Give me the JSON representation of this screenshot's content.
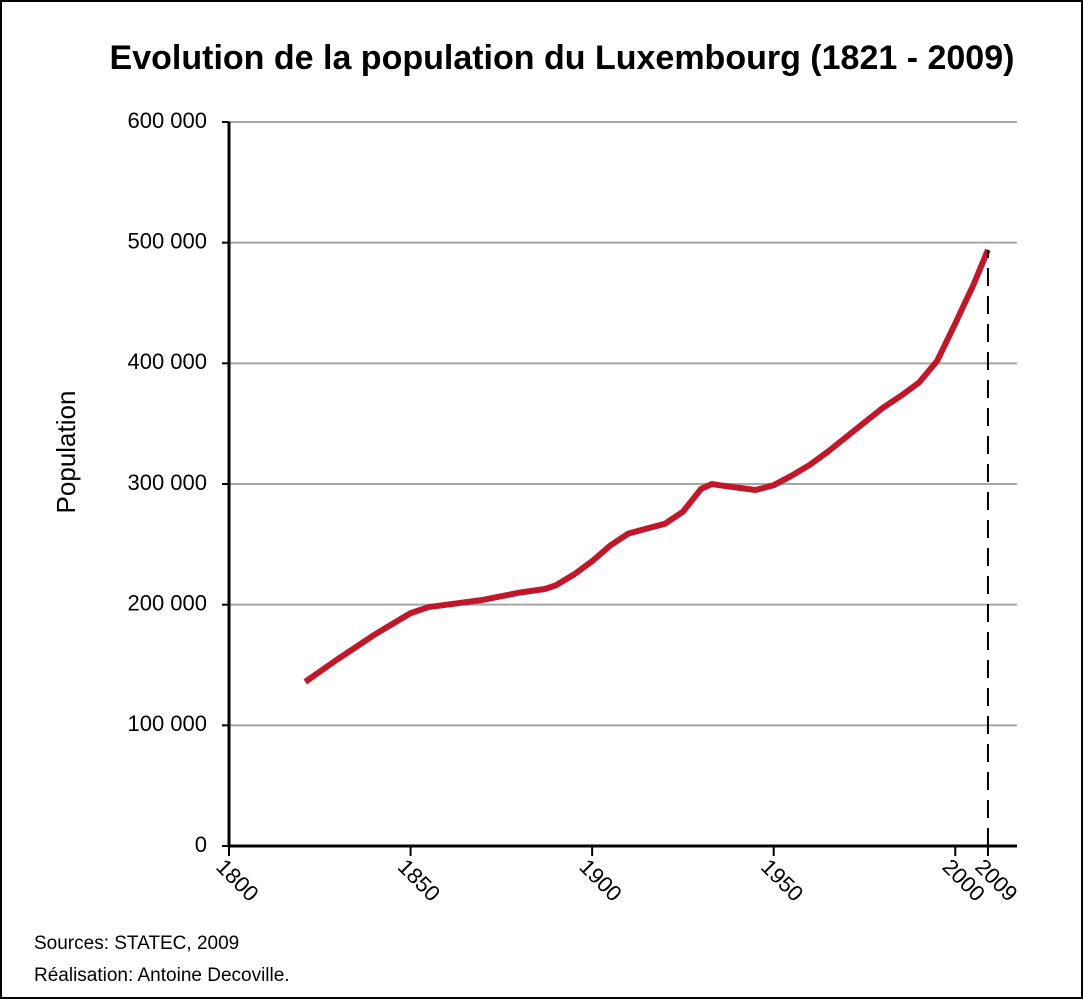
{
  "chart_data": {
    "type": "line",
    "title": "Evolution de la population du Luxembourg (1821 - 2009)",
    "y_label": "Population",
    "notes": [
      "Sources: STATEC, 2009",
      "Réalisation: Antoine Decoville."
    ],
    "x": [
      1821,
      1830,
      1840,
      1850,
      1855,
      1860,
      1870,
      1880,
      1887,
      1890,
      1895,
      1900,
      1905,
      1910,
      1915,
      1920,
      1925,
      1930,
      1933,
      1935,
      1940,
      1945,
      1950,
      1955,
      1960,
      1965,
      1970,
      1975,
      1980,
      1985,
      1990,
      1995,
      2000,
      2002,
      2005,
      2009
    ],
    "series": [
      {
        "name": "Population",
        "color": "#c0182a",
        "values": [
          136000,
          155000,
          175000,
          193000,
          198000,
          200000,
          204000,
          210000,
          213000,
          216000,
          225000,
          236000,
          249000,
          259000,
          263000,
          267000,
          277000,
          296000,
          300000,
          299000,
          297000,
          295000,
          299000,
          307000,
          316000,
          327000,
          339000,
          351000,
          363000,
          373000,
          384000,
          402000,
          433000,
          446000,
          465000,
          494000
        ]
      }
    ],
    "reference_x": 2009,
    "xlim": [
      1800,
      2017
    ],
    "xticks": [
      1800,
      1850,
      1900,
      1950,
      2000,
      2009
    ],
    "ylim": [
      0,
      600000
    ],
    "yticks": [
      0,
      {
        "value": 100000,
        "label": "100 000"
      },
      {
        "value": 200000,
        "label": "200 000"
      },
      {
        "value": 300000,
        "label": "300 000"
      },
      {
        "value": 400000,
        "label": "400 000"
      },
      {
        "value": 500000,
        "label": "500 000"
      },
      {
        "value": 600000,
        "label": "600 000"
      }
    ],
    "grid": true
  }
}
